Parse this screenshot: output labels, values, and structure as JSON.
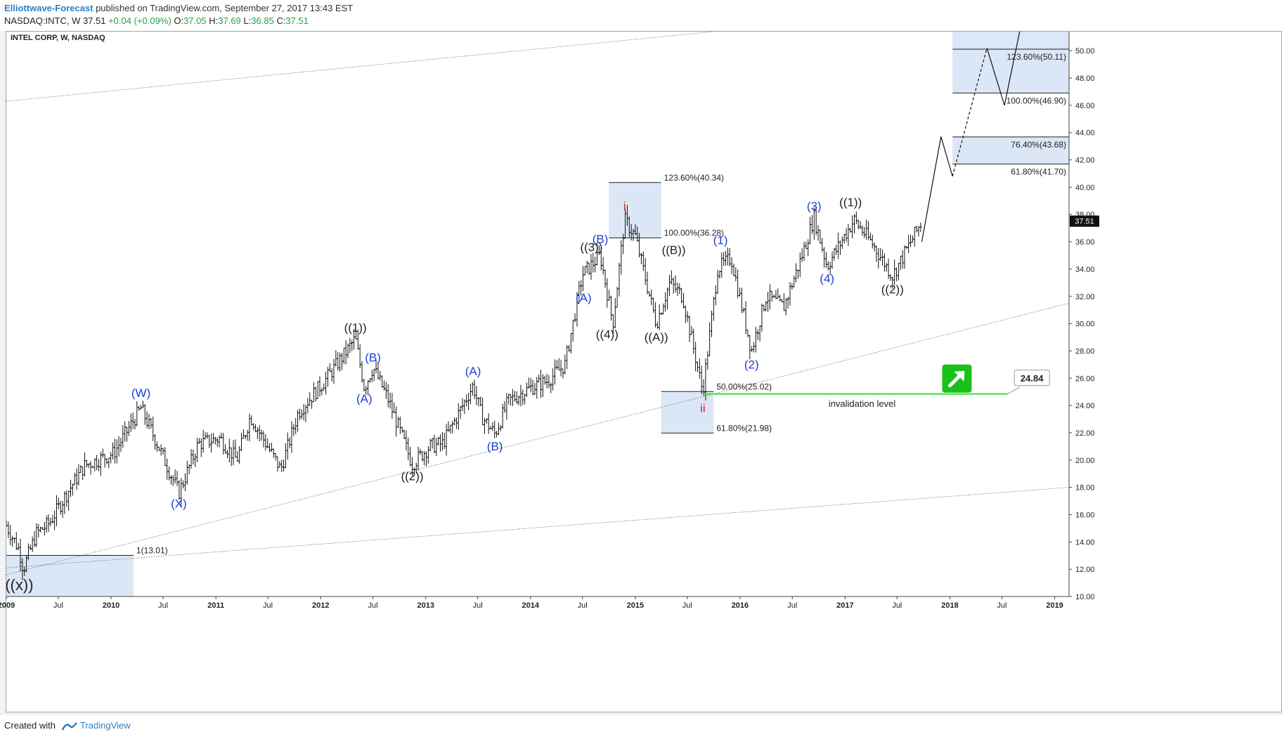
{
  "header": {
    "author": "Elliottwave-Forecast",
    "published_text": "published on TradingView.com, September 27, 2017 13:43 EST",
    "symbol_line": "NASDAQ:INTC, W  37.51 ",
    "change": "+0.04 (+0.09%)",
    "o_label": "O:",
    "o_value": "37.05",
    "h_label": "H:",
    "h_value": "37.69",
    "l_label": "L:",
    "l_value": "36.85",
    "c_label": "C:",
    "c_value": "37.51"
  },
  "footer": {
    "created_with": "Created with",
    "brand": "TradingView"
  },
  "colors": {
    "wave_blue": "#1f3fd6",
    "wave_black": "#222222",
    "wave_red": "#d12c2c",
    "zone_fill": "#dbe7f6",
    "invalidation_green": "#3ddc3d",
    "arrow_green": "#19c019"
  },
  "chart_data": {
    "type": "ohlc",
    "title": "INTEL CORP, W, NASDAQ",
    "xlabel": "",
    "ylabel": "",
    "ylim": [
      10,
      51.4
    ],
    "xlim": [
      "2009-01-01",
      "2019-02-20"
    ],
    "y_ticks": [
      "10.00",
      "12.00",
      "14.00",
      "16.00",
      "18.00",
      "20.00",
      "22.00",
      "24.00",
      "26.00",
      "28.00",
      "30.00",
      "32.00",
      "34.00",
      "36.00",
      "38.00",
      "40.00",
      "42.00",
      "44.00",
      "46.00",
      "48.00",
      "50.00"
    ],
    "x_ticks": [
      {
        "date": "2009-01-01",
        "label": "2009",
        "bold": true
      },
      {
        "date": "2009-07-01",
        "label": "Jul",
        "bold": false
      },
      {
        "date": "2010-01-01",
        "label": "2010",
        "bold": true
      },
      {
        "date": "2010-07-01",
        "label": "Jul",
        "bold": false
      },
      {
        "date": "2011-01-01",
        "label": "2011",
        "bold": true
      },
      {
        "date": "2011-07-01",
        "label": "Jul",
        "bold": false
      },
      {
        "date": "2012-01-01",
        "label": "2012",
        "bold": true
      },
      {
        "date": "2012-07-01",
        "label": "Jul",
        "bold": false
      },
      {
        "date": "2013-01-01",
        "label": "2013",
        "bold": true
      },
      {
        "date": "2013-07-01",
        "label": "Jul",
        "bold": false
      },
      {
        "date": "2014-01-01",
        "label": "2014",
        "bold": true
      },
      {
        "date": "2014-07-01",
        "label": "Jul",
        "bold": false
      },
      {
        "date": "2015-01-01",
        "label": "2015",
        "bold": true
      },
      {
        "date": "2015-07-01",
        "label": "Jul",
        "bold": false
      },
      {
        "date": "2016-01-01",
        "label": "2016",
        "bold": true
      },
      {
        "date": "2016-07-01",
        "label": "Jul",
        "bold": false
      },
      {
        "date": "2017-01-01",
        "label": "2017",
        "bold": true
      },
      {
        "date": "2017-07-01",
        "label": "Jul",
        "bold": false
      },
      {
        "date": "2018-01-01",
        "label": "2018",
        "bold": true
      },
      {
        "date": "2018-07-01",
        "label": "Jul",
        "bold": false
      },
      {
        "date": "2019-01-01",
        "label": "2019",
        "bold": true
      }
    ],
    "last_price": "37.51",
    "price_path": [
      [
        "2009-01-01",
        15.2
      ],
      [
        "2009-02-15",
        13.4
      ],
      [
        "2009-03-01",
        12.0
      ],
      [
        "2009-04-15",
        14.6
      ],
      [
        "2009-06-01",
        15.4
      ],
      [
        "2009-08-01",
        17.6
      ],
      [
        "2009-10-01",
        19.6
      ],
      [
        "2010-01-10",
        20.5
      ],
      [
        "2010-04-15",
        23.8
      ],
      [
        "2010-06-15",
        21.0
      ],
      [
        "2010-08-25",
        17.6
      ],
      [
        "2010-11-01",
        21.2
      ],
      [
        "2011-01-15",
        21.6
      ],
      [
        "2011-03-15",
        20.0
      ],
      [
        "2011-05-01",
        23.2
      ],
      [
        "2011-08-15",
        19.3
      ],
      [
        "2011-10-15",
        23.5
      ],
      [
        "2012-01-15",
        25.8
      ],
      [
        "2012-04-01",
        28.0
      ],
      [
        "2012-05-01",
        28.9
      ],
      [
        "2012-06-01",
        25.3
      ],
      [
        "2012-07-01",
        26.8
      ],
      [
        "2012-08-20",
        24.6
      ],
      [
        "2012-11-15",
        19.7
      ],
      [
        "2013-01-15",
        21.0
      ],
      [
        "2013-03-01",
        21.2
      ],
      [
        "2013-05-15",
        24.2
      ],
      [
        "2013-06-15",
        25.5
      ],
      [
        "2013-07-15",
        23.2
      ],
      [
        "2013-08-30",
        21.9
      ],
      [
        "2013-10-15",
        24.3
      ],
      [
        "2014-01-01",
        25.3
      ],
      [
        "2014-03-01",
        25.8
      ],
      [
        "2014-05-01",
        27.0
      ],
      [
        "2014-07-01",
        33.6
      ],
      [
        "2014-09-01",
        35.0
      ],
      [
        "2014-10-15",
        30.0
      ],
      [
        "2014-11-25",
        37.6
      ],
      [
        "2015-01-01",
        36.4
      ],
      [
        "2015-03-15",
        30.0
      ],
      [
        "2015-05-01",
        33.0
      ],
      [
        "2015-06-15",
        32.0
      ],
      [
        "2015-08-24",
        25.0
      ],
      [
        "2015-10-15",
        34.0
      ],
      [
        "2015-12-01",
        34.8
      ],
      [
        "2016-02-10",
        28.0
      ],
      [
        "2016-04-01",
        32.0
      ],
      [
        "2016-06-01",
        31.2
      ],
      [
        "2016-08-01",
        34.8
      ],
      [
        "2016-09-15",
        37.8
      ],
      [
        "2016-10-30",
        34.2
      ],
      [
        "2017-01-01",
        36.5
      ],
      [
        "2017-02-01",
        37.6
      ],
      [
        "2017-04-01",
        36.0
      ],
      [
        "2017-06-15",
        33.5
      ],
      [
        "2017-09-25",
        37.5
      ]
    ],
    "projection": [
      [
        "2017-09-25",
        36.0
      ],
      [
        "2017-12-01",
        43.7
      ],
      [
        "2018-01-10",
        40.8
      ],
      [
        "2018-05-10",
        50.2
      ],
      [
        "2018-07-10",
        46.0
      ],
      [
        "2018-09-01",
        51.4
      ]
    ],
    "projection_dashed": [
      [
        2,
        3
      ]
    ],
    "invalidation_level": 24.84,
    "invalidation_label": "invalidation level",
    "invalidation_value": "24.84",
    "zones": [
      {
        "id": "zone-13",
        "from": "2009-01-01",
        "to": "2010-03-20",
        "y_top": 13.01,
        "y_bottom": 10.0,
        "lines": [
          {
            "y": 13.01,
            "label": "1(13.01)",
            "side": "right"
          }
        ]
      },
      {
        "id": "zone-i",
        "from": "2014-10-01",
        "to": "2015-04-01",
        "y_top": 40.34,
        "y_bottom": 36.28,
        "lines": [
          {
            "y": 40.34,
            "label": "123.60%(40.34)",
            "side": "right"
          },
          {
            "y": 36.28,
            "label": "100.00%(36.28)",
            "side": "right"
          }
        ]
      },
      {
        "id": "zone-ii",
        "from": "2015-04-01",
        "to": "2015-10-01",
        "y_top": 25.02,
        "y_bottom": 21.98,
        "lines": [
          {
            "y": 25.02,
            "label": "50.00%(25.02)",
            "side": "right"
          },
          {
            "y": 21.98,
            "label": "61.80%(21.98)",
            "side": "right"
          }
        ]
      },
      {
        "id": "zone-41",
        "from": "2018-01-10",
        "to": "2019-02-20",
        "y_top": 43.68,
        "y_bottom": 41.7,
        "lines": [
          {
            "y": 43.68,
            "label": "76.40%(43.68)",
            "side": "inside"
          },
          {
            "y": 41.7,
            "label": "61.80%(41.70)",
            "side": "inside"
          }
        ]
      },
      {
        "id": "zone-50",
        "from": "2018-01-10",
        "to": "2019-02-20",
        "y_top": 51.4,
        "y_bottom": 46.9,
        "lines": [
          {
            "y": 50.11,
            "label": "123.60%(50.11)",
            "side": "inside"
          },
          {
            "y": 46.9,
            "label": "100.00%(46.90)",
            "side": "inside"
          }
        ]
      }
    ],
    "trendlines": [
      {
        "from": [
          "2009-01-01",
          11.6
        ],
        "to": [
          "2019-02-20",
          31.5
        ],
        "style": "dotted"
      },
      {
        "from": [
          "2009-01-01",
          12.1
        ],
        "to": [
          "2019-02-20",
          18.0
        ],
        "style": "dotted"
      },
      {
        "from": [
          "2009-01-01",
          46.3
        ],
        "to": [
          "2015-10-01",
          51.4
        ],
        "style": "dotted"
      }
    ],
    "wave_labels": [
      {
        "text": "((x))",
        "date": "2009-02-15",
        "y": 11.8,
        "color": "black",
        "pos": "below",
        "size": 22
      },
      {
        "text": "(W)",
        "date": "2010-04-15",
        "y": 24.2,
        "color": "blue",
        "pos": "above"
      },
      {
        "text": "(X)",
        "date": "2010-08-25",
        "y": 17.6,
        "color": "blue",
        "pos": "below"
      },
      {
        "text": "((1))",
        "date": "2012-05-01",
        "y": 29.0,
        "color": "black",
        "pos": "above"
      },
      {
        "text": "(A)",
        "date": "2012-06-01",
        "y": 25.3,
        "color": "blue",
        "pos": "below"
      },
      {
        "text": "(B)",
        "date": "2012-07-01",
        "y": 26.8,
        "color": "blue",
        "pos": "above"
      },
      {
        "text": "((2))",
        "date": "2012-11-15",
        "y": 19.6,
        "color": "black",
        "pos": "below"
      },
      {
        "text": "(A)",
        "date": "2013-06-15",
        "y": 25.8,
        "color": "blue",
        "pos": "above"
      },
      {
        "text": "(B)",
        "date": "2013-08-30",
        "y": 21.8,
        "color": "blue",
        "pos": "below"
      },
      {
        "text": "(A)",
        "date": "2014-07-05",
        "y": 31.2,
        "color": "blue",
        "pos": "above"
      },
      {
        "text": "((3))",
        "date": "2014-08-01",
        "y": 34.9,
        "color": "black",
        "pos": "above"
      },
      {
        "text": "(B)",
        "date": "2014-09-01",
        "y": 35.5,
        "color": "blue",
        "pos": "above"
      },
      {
        "text": "((4))",
        "date": "2014-09-25",
        "y": 30.0,
        "color": "black",
        "pos": "below"
      },
      {
        "text": "i",
        "date": "2014-11-25",
        "y": 37.9,
        "color": "red",
        "pos": "above"
      },
      {
        "text": "((A))",
        "date": "2015-03-15",
        "y": 29.8,
        "color": "black",
        "pos": "below"
      },
      {
        "text": "((B))",
        "date": "2015-05-15",
        "y": 34.7,
        "color": "black",
        "pos": "above"
      },
      {
        "text": "ii",
        "date": "2015-08-24",
        "y": 24.6,
        "color": "red",
        "pos": "below"
      },
      {
        "text": "(1)",
        "date": "2015-10-25",
        "y": 35.4,
        "color": "blue",
        "pos": "above"
      },
      {
        "text": "(2)",
        "date": "2016-02-10",
        "y": 27.8,
        "color": "blue",
        "pos": "below"
      },
      {
        "text": "(3)",
        "date": "2016-09-15",
        "y": 37.9,
        "color": "blue",
        "pos": "above"
      },
      {
        "text": "(4)",
        "date": "2016-10-30",
        "y": 34.1,
        "color": "blue",
        "pos": "below"
      },
      {
        "text": "((1))",
        "date": "2017-01-20",
        "y": 38.2,
        "color": "black",
        "pos": "above"
      },
      {
        "text": "((2))",
        "date": "2017-06-15",
        "y": 33.3,
        "color": "black",
        "pos": "below"
      }
    ]
  }
}
